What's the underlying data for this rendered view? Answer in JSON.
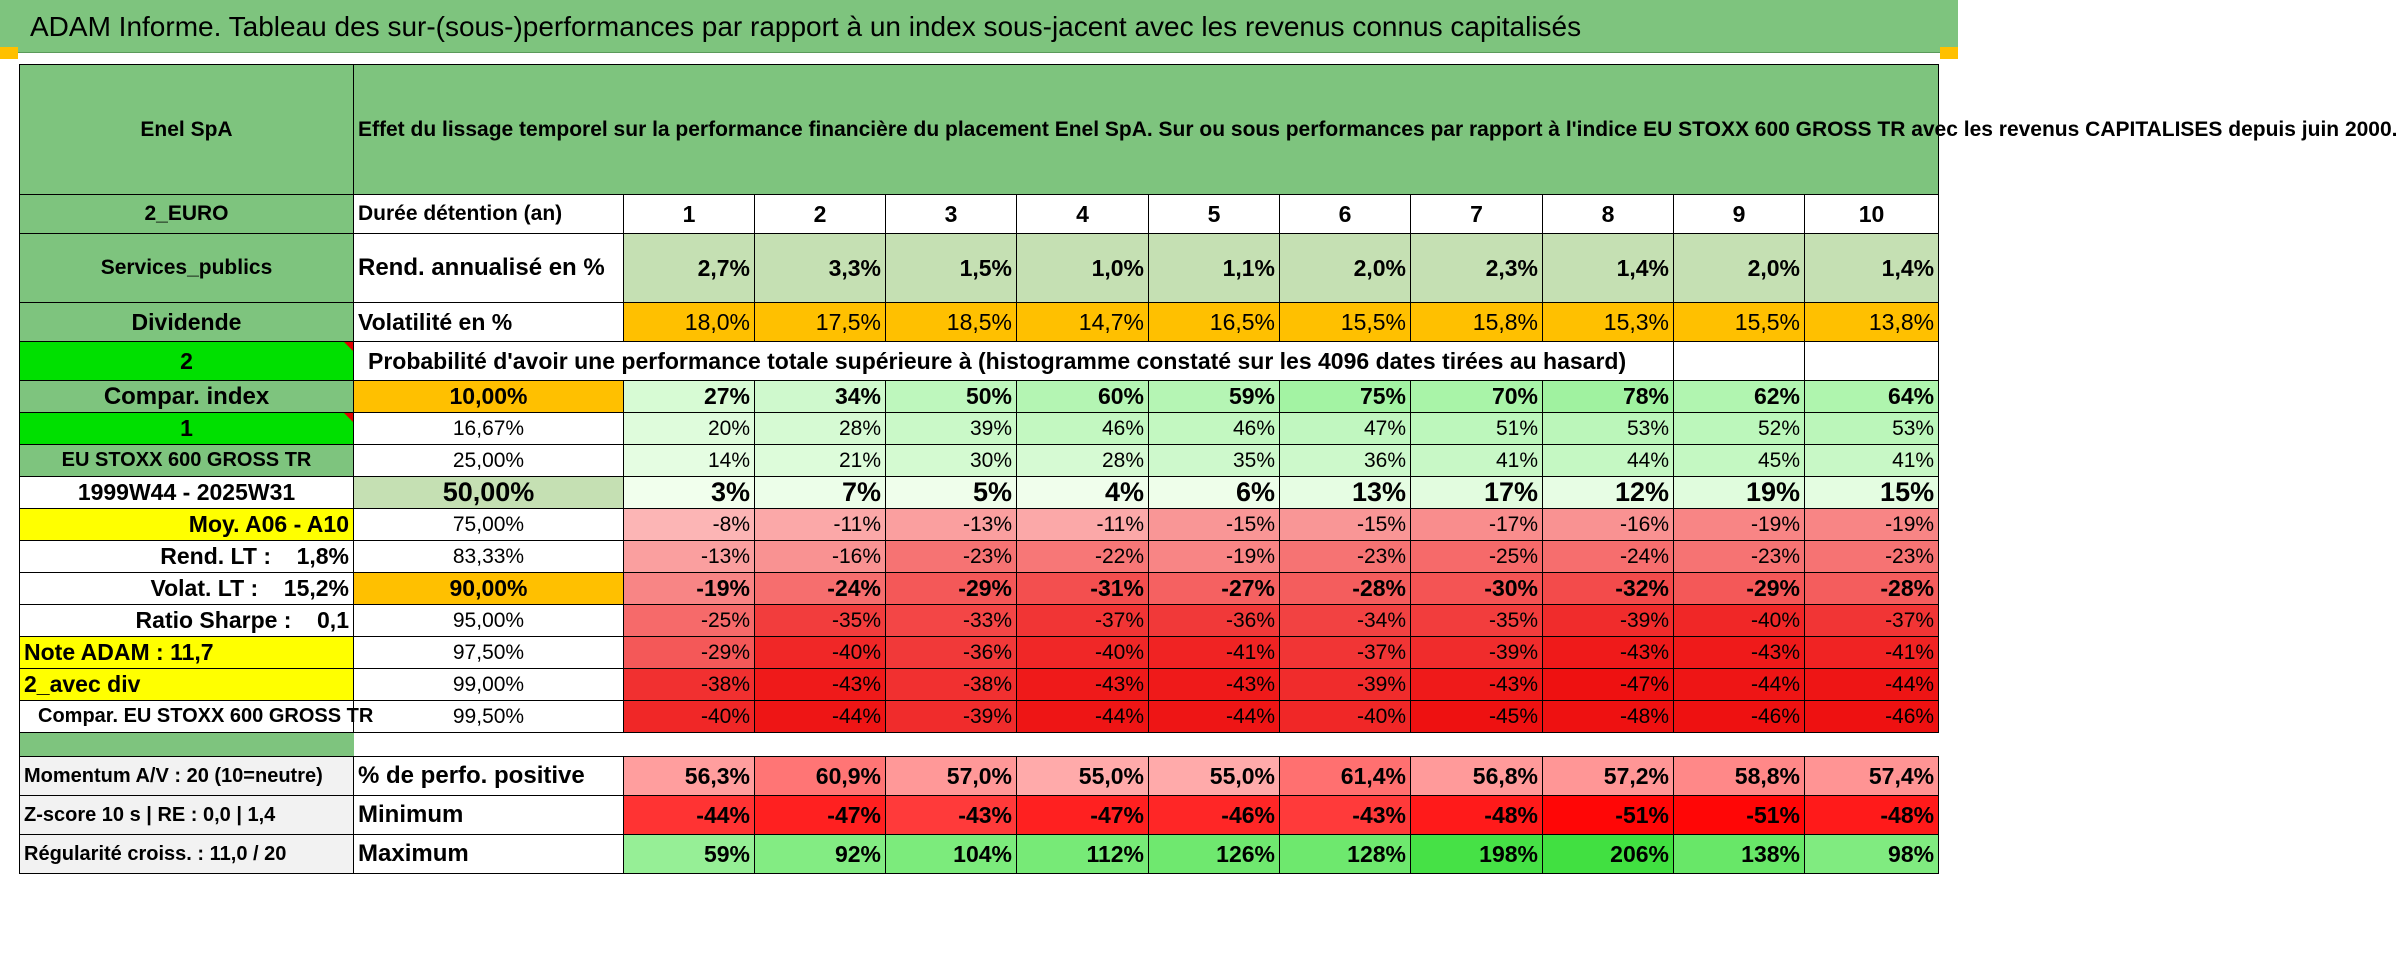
{
  "title": "ADAM Informe. Tableau des sur-(sous-)performances par rapport à un index sous-jacent avec les revenus connus capitalisés",
  "header": {
    "company": "Enel SpA",
    "description": "Effet du lissage temporel sur la performance financière du placement Enel SpA. Sur ou sous performances par rapport à l'indice EU STOXX 600 GROSS TR avec les revenus CAPITALISES depuis juin 2000."
  },
  "left": {
    "currency": "2_EURO",
    "sector": "Services_publics",
    "dividend_label": "Dividende",
    "val_2": "2",
    "compar_index": "Compar. index",
    "val_1": "1",
    "index_name": "EU STOXX 600 GROSS TR",
    "period": "1999W44 - 2025W31",
    "moy": "Moy. A06 - A10",
    "rend_lt": "Rend. LT :    1,8%",
    "volat_lt": "Volat. LT :    15,2%",
    "sharpe": "Ratio Sharpe :    0,1",
    "note": "Note ADAM : 11,7",
    "avec_div": "2_avec div",
    "compar_full": "Compar. EU STOXX 600 GROSS TR"
  },
  "labels": {
    "duree": "Durée détention (an)",
    "rend": "Rend. annualisé en %",
    "vol": "Volatilité en %",
    "prob": "Probabilité d'avoir une performance totale supérieure à (histogramme constaté sur les 4096 dates tirées au hasard)"
  },
  "years": [
    "1",
    "2",
    "3",
    "4",
    "5",
    "6",
    "7",
    "8",
    "9",
    "10"
  ],
  "rend": [
    "2,7%",
    "3,3%",
    "1,5%",
    "1,0%",
    "1,1%",
    "2,0%",
    "2,3%",
    "1,4%",
    "2,0%",
    "1,4%"
  ],
  "vol": [
    "18,0%",
    "17,5%",
    "18,5%",
    "14,7%",
    "16,5%",
    "15,5%",
    "15,8%",
    "15,3%",
    "15,5%",
    "13,8%"
  ],
  "percentiles": [
    {
      "p": "10,00%",
      "values": [
        "27%",
        "34%",
        "50%",
        "60%",
        "59%",
        "75%",
        "70%",
        "78%",
        "62%",
        "64%"
      ]
    },
    {
      "p": "16,67%",
      "values": [
        "20%",
        "28%",
        "39%",
        "46%",
        "46%",
        "47%",
        "51%",
        "53%",
        "52%",
        "53%"
      ]
    },
    {
      "p": "25,00%",
      "values": [
        "14%",
        "21%",
        "30%",
        "28%",
        "35%",
        "36%",
        "41%",
        "44%",
        "45%",
        "41%"
      ]
    },
    {
      "p": "50,00%",
      "values": [
        "3%",
        "7%",
        "5%",
        "4%",
        "6%",
        "13%",
        "17%",
        "12%",
        "19%",
        "15%"
      ]
    },
    {
      "p": "75,00%",
      "values": [
        "-8%",
        "-11%",
        "-13%",
        "-11%",
        "-15%",
        "-15%",
        "-17%",
        "-16%",
        "-19%",
        "-19%"
      ]
    },
    {
      "p": "83,33%",
      "values": [
        "-13%",
        "-16%",
        "-23%",
        "-22%",
        "-19%",
        "-23%",
        "-25%",
        "-24%",
        "-23%",
        "-23%"
      ]
    },
    {
      "p": "90,00%",
      "values": [
        "-19%",
        "-24%",
        "-29%",
        "-31%",
        "-27%",
        "-28%",
        "-30%",
        "-32%",
        "-29%",
        "-28%"
      ]
    },
    {
      "p": "95,00%",
      "values": [
        "-25%",
        "-35%",
        "-33%",
        "-37%",
        "-36%",
        "-34%",
        "-35%",
        "-39%",
        "-40%",
        "-37%"
      ]
    },
    {
      "p": "97,50%",
      "values": [
        "-29%",
        "-40%",
        "-36%",
        "-40%",
        "-41%",
        "-37%",
        "-39%",
        "-43%",
        "-43%",
        "-41%"
      ]
    },
    {
      "p": "99,00%",
      "values": [
        "-38%",
        "-43%",
        "-38%",
        "-43%",
        "-43%",
        "-39%",
        "-43%",
        "-47%",
        "-44%",
        "-44%"
      ]
    },
    {
      "p": "99,50%",
      "values": [
        "-40%",
        "-44%",
        "-39%",
        "-44%",
        "-44%",
        "-40%",
        "-45%",
        "-48%",
        "-46%",
        "-46%"
      ]
    }
  ],
  "bottom": [
    {
      "left": "Momentum A/V : 20 (10=neutre)",
      "label": "% de perfo. positive",
      "values": [
        "56,3%",
        "60,9%",
        "57,0%",
        "55,0%",
        "55,0%",
        "61,4%",
        "56,8%",
        "57,2%",
        "58,8%",
        "57,4%"
      ]
    },
    {
      "left": "Z-score 10 s | RE : 0,0 | 1,4",
      "label": "Minimum",
      "values": [
        "-44%",
        "-47%",
        "-43%",
        "-47%",
        "-46%",
        "-43%",
        "-48%",
        "-51%",
        "-51%",
        "-48%"
      ]
    },
    {
      "left": "Régularité croiss. : 11,0 / 20",
      "label": "Maximum",
      "values": [
        "59%",
        "92%",
        "104%",
        "112%",
        "126%",
        "128%",
        "198%",
        "206%",
        "138%",
        "98%"
      ]
    }
  ],
  "colors": {
    "header_green": "#7ec47e",
    "bright_green": "#00e000",
    "yellow": "#ffff00",
    "orange": "#ffc000",
    "red_text": "#e00000"
  }
}
